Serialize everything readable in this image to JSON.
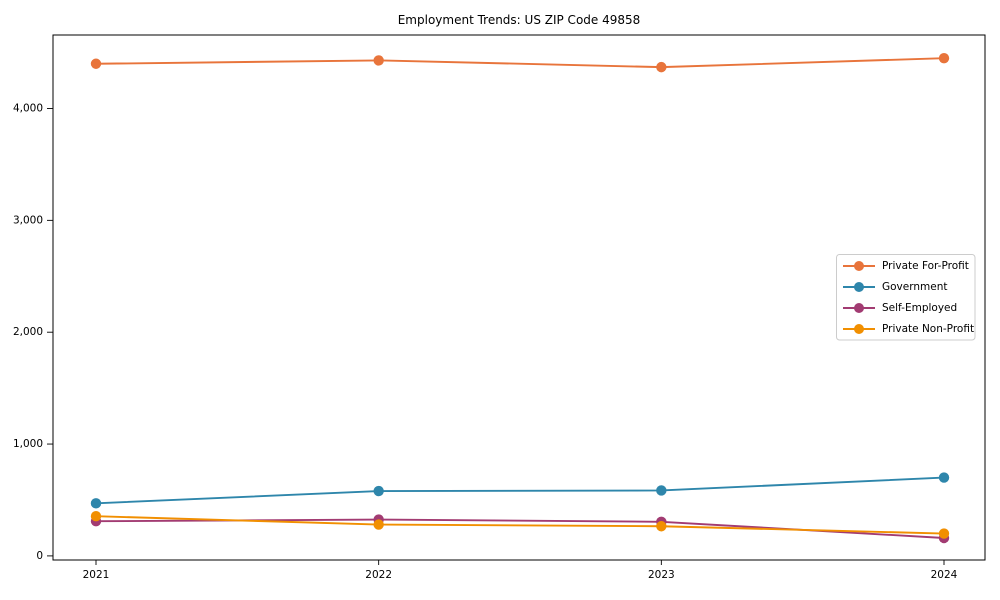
{
  "page": {
    "background_color": "#ffffff"
  },
  "chart_data": {
    "type": "line",
    "title": "Employment Trends: US ZIP Code 49858",
    "xlabel": "",
    "ylabel": "",
    "x": [
      2021,
      2022,
      2023,
      2024
    ],
    "x_tick_labels": [
      "2021",
      "2022",
      "2023",
      "2024"
    ],
    "yticks": [
      0,
      1000,
      2000,
      3000,
      4000
    ],
    "ytick_labels": [
      "0",
      "1,000",
      "2,000",
      "3,000",
      "4,000"
    ],
    "ylim": [
      -40,
      4660
    ],
    "grid": false,
    "marker": "circle",
    "legend": {
      "position": "center-right",
      "border_color": "#cccccc",
      "background": "#ffffff",
      "entries": [
        "Private For-Profit",
        "Government",
        "Self-Employed",
        "Private Non-Profit"
      ]
    },
    "series": [
      {
        "name": "Private For-Profit",
        "color": "#E8743B",
        "values": [
          4400,
          4430,
          4370,
          4450
        ]
      },
      {
        "name": "Government",
        "color": "#2E86AB",
        "values": [
          470,
          580,
          585,
          700
        ]
      },
      {
        "name": "Self-Employed",
        "color": "#A23B72",
        "values": [
          310,
          325,
          305,
          160
        ]
      },
      {
        "name": "Private Non-Profit",
        "color": "#F18F01",
        "values": [
          355,
          280,
          265,
          200
        ]
      }
    ],
    "frame_color": "#000000",
    "tick_color": "#000000"
  }
}
